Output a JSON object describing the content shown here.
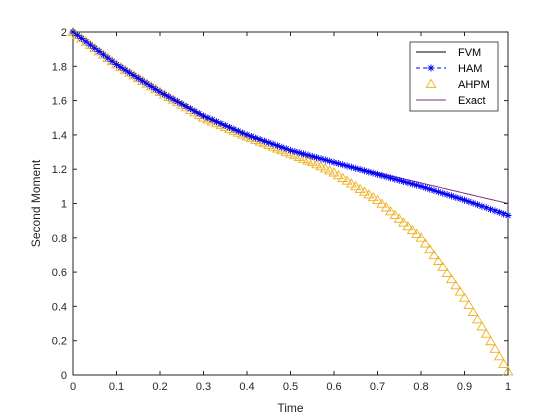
{
  "chart_data": {
    "type": "line",
    "title": "",
    "xlabel": "Time",
    "ylabel": "Second Moment",
    "xlim": [
      0,
      1
    ],
    "ylim": [
      0,
      2
    ],
    "xticks": [
      "0",
      "0.1",
      "0.2",
      "0.3",
      "0.4",
      "0.5",
      "0.6",
      "0.7",
      "0.8",
      "0.9",
      "1"
    ],
    "yticks": [
      "0",
      "0.2",
      "0.4",
      "0.6",
      "0.8",
      "1",
      "1.2",
      "1.4",
      "1.6",
      "1.8",
      "2"
    ],
    "grid": false,
    "legend_position": "top-right",
    "series": [
      {
        "name": "FVM",
        "style": "line",
        "color": "#000000",
        "x": [
          0,
          0.1,
          0.2,
          0.3,
          0.4,
          0.5,
          0.6,
          0.7,
          0.8,
          0.9,
          1.0
        ],
        "y": [
          2.0,
          1.81,
          1.65,
          1.51,
          1.4,
          1.31,
          1.24,
          1.17,
          1.1,
          1.02,
          0.94
        ]
      },
      {
        "name": "HAM",
        "style": "marker-star",
        "color": "#0000ff",
        "x": [
          0,
          0.1,
          0.2,
          0.3,
          0.4,
          0.5,
          0.6,
          0.7,
          0.8,
          0.9,
          1.0
        ],
        "y": [
          2.0,
          1.81,
          1.65,
          1.51,
          1.4,
          1.31,
          1.24,
          1.17,
          1.1,
          1.02,
          0.93
        ]
      },
      {
        "name": "AHPM",
        "style": "marker-triangle",
        "color": "#edb120",
        "x": [
          0,
          0.1,
          0.2,
          0.3,
          0.4,
          0.5,
          0.55,
          0.6,
          0.65,
          0.7,
          0.75,
          0.8,
          0.85,
          0.9,
          0.95,
          1.0
        ],
        "y": [
          2.0,
          1.81,
          1.65,
          1.5,
          1.39,
          1.29,
          1.24,
          1.18,
          1.1,
          1.02,
          0.91,
          0.8,
          0.63,
          0.45,
          0.24,
          0.02
        ]
      },
      {
        "name": "Exact",
        "style": "line",
        "color": "#7e2f8e",
        "x": [
          0,
          0.1,
          0.2,
          0.3,
          0.4,
          0.5,
          0.6,
          0.7,
          0.8,
          0.9,
          1.0
        ],
        "y": [
          2.0,
          1.81,
          1.65,
          1.51,
          1.4,
          1.31,
          1.24,
          1.18,
          1.12,
          1.06,
          1.0
        ]
      }
    ]
  }
}
